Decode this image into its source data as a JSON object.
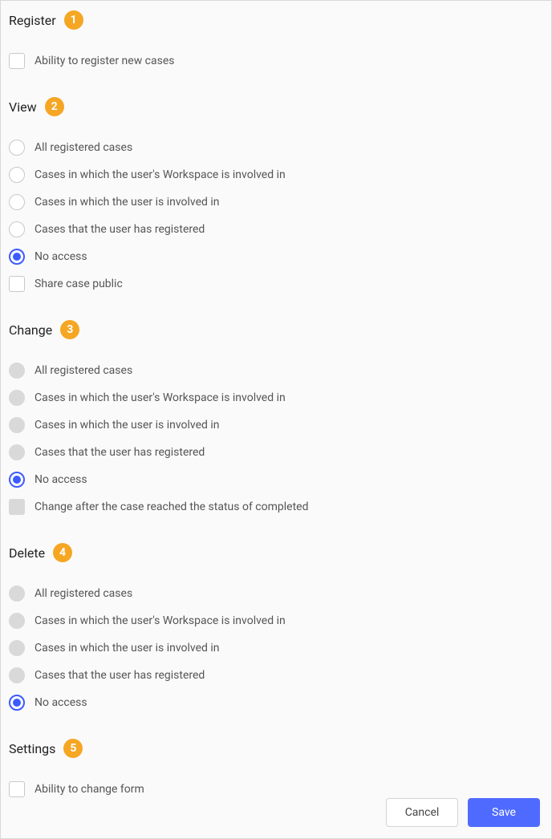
{
  "colors": {
    "panel_bg": "#fafafa",
    "border": "#d9d9d9",
    "badge_bg": "#f5a623",
    "badge_text": "#ffffff",
    "accent": "#3b5bff",
    "primary_btn": "#4f6bff",
    "text_title": "#222222",
    "text_label": "#555555",
    "disabled_bg": "#d9d9d9"
  },
  "sections": {
    "register": {
      "title": "Register",
      "badge": "1",
      "items": [
        {
          "type": "checkbox",
          "label": "Ability to register new cases",
          "checked": false,
          "disabled": false
        }
      ]
    },
    "view": {
      "title": "View",
      "badge": "2",
      "items": [
        {
          "type": "radio",
          "label": "All registered cases",
          "selected": false,
          "disabled": false
        },
        {
          "type": "radio",
          "label": "Cases in which the user's Workspace is involved in",
          "selected": false,
          "disabled": false
        },
        {
          "type": "radio",
          "label": "Cases in which the user is involved in",
          "selected": false,
          "disabled": false
        },
        {
          "type": "radio",
          "label": "Cases that the user has registered",
          "selected": false,
          "disabled": false
        },
        {
          "type": "radio",
          "label": "No access",
          "selected": true,
          "disabled": false
        },
        {
          "type": "checkbox",
          "label": "Share case public",
          "checked": false,
          "disabled": false
        }
      ]
    },
    "change": {
      "title": "Change",
      "badge": "3",
      "items": [
        {
          "type": "radio",
          "label": "All registered cases",
          "selected": false,
          "disabled": true
        },
        {
          "type": "radio",
          "label": "Cases in which the user's Workspace is involved in",
          "selected": false,
          "disabled": true
        },
        {
          "type": "radio",
          "label": "Cases in which the user is involved in",
          "selected": false,
          "disabled": true
        },
        {
          "type": "radio",
          "label": "Cases that the user has registered",
          "selected": false,
          "disabled": true
        },
        {
          "type": "radio",
          "label": "No access",
          "selected": true,
          "disabled": false
        },
        {
          "type": "checkbox",
          "label": "Change after the case reached the status of completed",
          "checked": false,
          "disabled": true
        }
      ]
    },
    "delete": {
      "title": "Delete",
      "badge": "4",
      "items": [
        {
          "type": "radio",
          "label": "All registered cases",
          "selected": false,
          "disabled": true
        },
        {
          "type": "radio",
          "label": "Cases in which the user's Workspace is involved in",
          "selected": false,
          "disabled": true
        },
        {
          "type": "radio",
          "label": "Cases in which the user is involved in",
          "selected": false,
          "disabled": true
        },
        {
          "type": "radio",
          "label": "Cases that the user has registered",
          "selected": false,
          "disabled": true
        },
        {
          "type": "radio",
          "label": "No access",
          "selected": true,
          "disabled": false
        }
      ]
    },
    "settings": {
      "title": "Settings",
      "badge": "5",
      "items": [
        {
          "type": "checkbox",
          "label": "Ability to change form",
          "checked": false,
          "disabled": false
        }
      ]
    }
  },
  "footer": {
    "cancel": "Cancel",
    "save": "Save"
  }
}
